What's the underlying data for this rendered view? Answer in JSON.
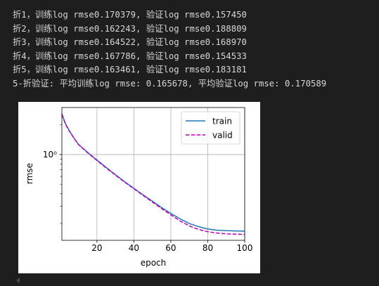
{
  "output": {
    "lines": [
      "折1，训练log rmse0.170379, 验证log rmse0.157450",
      "折2，训练log rmse0.162243, 验证log rmse0.188809",
      "折3，训练log rmse0.164522, 验证log rmse0.168970",
      "折4，训练log rmse0.167786, 验证log rmse0.154533",
      "折5，训练log rmse0.163461, 验证log rmse0.183181",
      "5-折验证: 平均训练log rmse: 0.165678, 平均验证log rmse: 0.170589"
    ]
  },
  "chart_data": {
    "type": "line",
    "xlabel": "epoch",
    "ylabel": "rmse",
    "xlim": [
      1,
      100
    ],
    "ylim": [
      0.135,
      3.0
    ],
    "yscale": "log",
    "grid": true,
    "legend_position": "top-right",
    "x_ticks": [
      20,
      40,
      60,
      80,
      100
    ],
    "y_tick_labels": [
      {
        "value": 1.0,
        "label": "10⁰"
      }
    ],
    "x": [
      1,
      2,
      3,
      5,
      8,
      10,
      15,
      20,
      25,
      30,
      35,
      40,
      45,
      50,
      55,
      60,
      65,
      70,
      75,
      80,
      85,
      90,
      95,
      100
    ],
    "series": [
      {
        "name": "train",
        "color": "#1f77b4",
        "dash": "solid",
        "values": [
          2.6,
          2.3,
          2.05,
          1.75,
          1.43,
          1.27,
          1.05,
          0.88,
          0.74,
          0.625,
          0.53,
          0.455,
          0.39,
          0.337,
          0.29,
          0.253,
          0.223,
          0.2,
          0.186,
          0.176,
          0.171,
          0.169,
          0.168,
          0.167
        ]
      },
      {
        "name": "valid",
        "color": "#bf00bf",
        "dash": "dashed",
        "values": [
          2.55,
          2.27,
          2.02,
          1.73,
          1.42,
          1.26,
          1.04,
          0.87,
          0.73,
          0.618,
          0.525,
          0.45,
          0.385,
          0.33,
          0.283,
          0.245,
          0.212,
          0.189,
          0.174,
          0.165,
          0.16,
          0.157,
          0.156,
          0.155
        ]
      }
    ]
  }
}
